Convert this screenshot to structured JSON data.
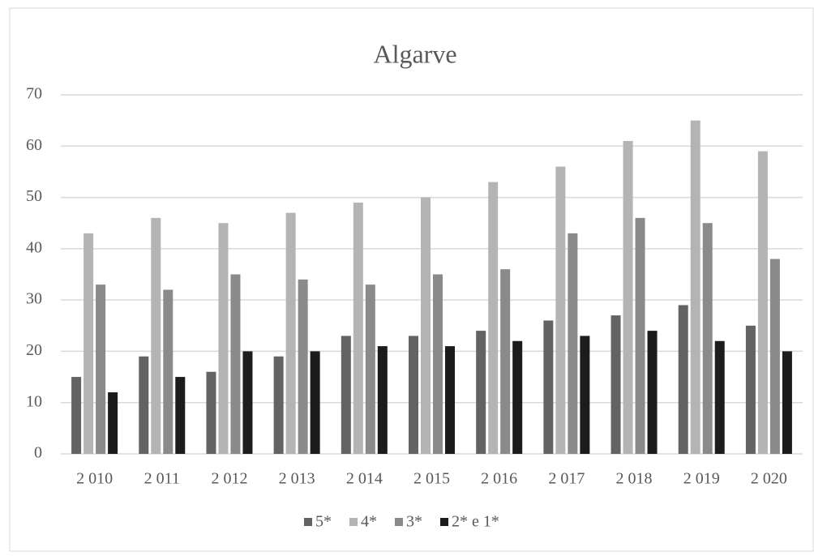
{
  "chart_data": {
    "type": "bar",
    "title": "Algarve",
    "categories": [
      "2 010",
      "2 011",
      "2 012",
      "2 013",
      "2 014",
      "2 015",
      "2 016",
      "2 017",
      "2 018",
      "2 019",
      "2 020"
    ],
    "series": [
      {
        "name": "5*",
        "color": "#636363",
        "values": [
          15,
          19,
          16,
          19,
          23,
          23,
          24,
          26,
          27,
          29,
          25
        ]
      },
      {
        "name": "4*",
        "color": "#b4b4b4",
        "values": [
          43,
          46,
          45,
          47,
          49,
          50,
          53,
          56,
          61,
          65,
          59
        ]
      },
      {
        "name": "3*",
        "color": "#8a8a8a",
        "values": [
          33,
          32,
          35,
          34,
          33,
          35,
          36,
          43,
          46,
          45,
          38
        ]
      },
      {
        "name": "2* e 1*",
        "color": "#1c1c1c",
        "values": [
          12,
          15,
          20,
          20,
          21,
          21,
          22,
          23,
          24,
          22,
          20
        ]
      }
    ],
    "ylim": [
      0,
      70
    ],
    "yticks": [
      0,
      10,
      20,
      30,
      40,
      50,
      60,
      70
    ],
    "grid": true,
    "legend": "bottom"
  }
}
